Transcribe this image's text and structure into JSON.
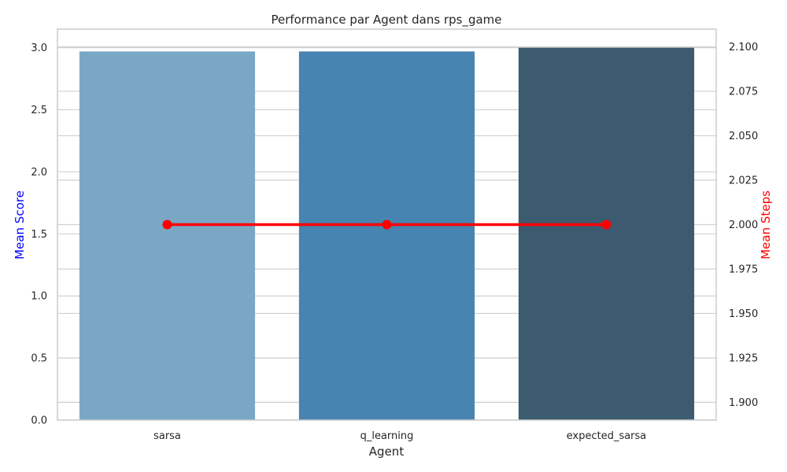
{
  "chart_data": {
    "type": "bar",
    "title": "Performance par Agent dans rps_game",
    "xlabel": "Agent",
    "categories": [
      "sarsa",
      "q_learning",
      "expected_sarsa"
    ],
    "series": [
      {
        "type": "bar",
        "axis": "left",
        "values": [
          2.97,
          2.97,
          3.0
        ],
        "colors": [
          "#7ba7c7",
          "#4884b1",
          "#3c5a70"
        ]
      },
      {
        "type": "line",
        "axis": "right",
        "values": [
          2.0,
          2.0,
          2.0
        ],
        "color": "#ff0000"
      }
    ],
    "left_axis": {
      "label": "Mean Score",
      "label_color": "#0000ff",
      "ylim": [
        0,
        3.15
      ],
      "ticks": [
        "0.0",
        "0.5",
        "1.0",
        "1.5",
        "2.0",
        "2.5",
        "3.0"
      ]
    },
    "right_axis": {
      "label": "Mean Steps",
      "label_color": "#ff0000",
      "ylim": [
        1.89,
        2.11
      ],
      "ticks": [
        "1.900",
        "1.925",
        "1.950",
        "1.975",
        "2.000",
        "2.025",
        "2.050",
        "2.075",
        "2.100"
      ]
    },
    "grid": true
  }
}
